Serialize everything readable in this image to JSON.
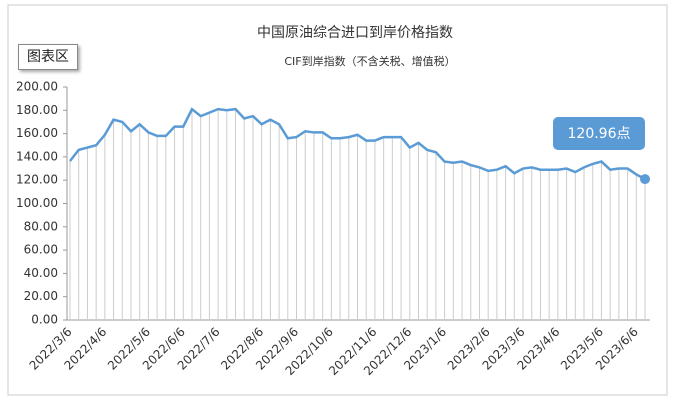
{
  "button": "图表区",
  "chart_data": {
    "type": "line",
    "title": "中国原油综合进口到岸价格指数",
    "subtitle": "CIF到岸指数（不含关税、增值税）",
    "annotation": "120.96点",
    "color": "#5b9bd5",
    "drop_lines": true,
    "categories": [
      "2022/3/6",
      null,
      null,
      null,
      "2022/4/6",
      null,
      null,
      null,
      null,
      "2022/5/6",
      null,
      null,
      null,
      "2022/6/6",
      null,
      null,
      null,
      "2022/7/6",
      null,
      null,
      null,
      null,
      "2022/8/6",
      null,
      null,
      null,
      "2022/9/6",
      null,
      null,
      null,
      "2022/10/6",
      null,
      null,
      null,
      null,
      "2022/11/6",
      null,
      null,
      null,
      "2022/12/6",
      null,
      null,
      null,
      "2023/1/6",
      null,
      null,
      null,
      null,
      "2023/2/6",
      null,
      null,
      null,
      "2023/3/6",
      null,
      null,
      null,
      "2023/4/6",
      null,
      null,
      null,
      null,
      "2023/5/6",
      null,
      null,
      null,
      "2023/6/6",
      null
    ],
    "values": [
      136.5,
      146,
      148,
      150,
      159,
      172,
      170,
      162,
      168,
      161,
      158,
      158,
      166,
      166,
      181,
      175,
      178,
      181,
      180,
      181,
      173,
      175,
      168,
      172,
      168,
      156,
      157,
      162,
      161,
      161,
      156,
      156,
      157,
      159,
      154,
      154,
      157,
      157,
      157,
      148,
      152,
      146,
      144,
      136,
      135,
      136,
      133,
      131,
      128,
      129,
      132,
      126,
      130,
      131,
      129,
      129,
      129,
      130,
      127,
      131,
      134,
      136,
      129,
      130,
      130,
      125,
      120.96
    ],
    "ylim": [
      0,
      200
    ],
    "yticks": [
      {
        "value": 0,
        "label": "0.00"
      },
      {
        "value": 20,
        "label": "20.00"
      },
      {
        "value": 40,
        "label": "40.00"
      },
      {
        "value": 60,
        "label": "60.00"
      },
      {
        "value": 80,
        "label": "80.00"
      },
      {
        "value": 100,
        "label": "100.00"
      },
      {
        "value": 120,
        "label": "120.00"
      },
      {
        "value": 140,
        "label": "140.00"
      },
      {
        "value": 160,
        "label": "160.00"
      },
      {
        "value": 180,
        "label": "180.00"
      },
      {
        "value": 200,
        "label": "200.00"
      }
    ]
  }
}
